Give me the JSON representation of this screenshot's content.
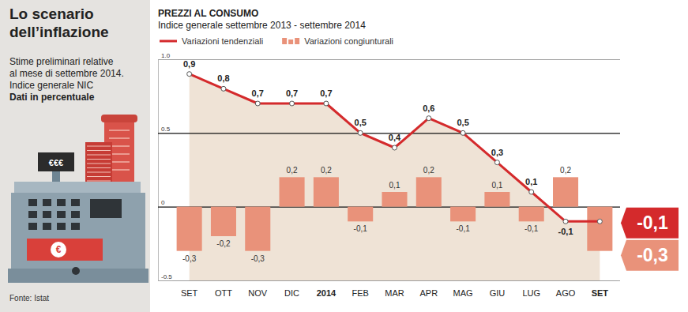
{
  "sidebar": {
    "heading": [
      "Lo scenario",
      "dell’inflazione"
    ],
    "notes": [
      "Stime preliminari relative",
      "al mese di settembre 2014.",
      "Indice generale NIC"
    ],
    "notes_bold": "Dati in percentuale",
    "source": "Fonte: Istat",
    "register_display": "€€€",
    "banknote": "€"
  },
  "chart_data": {
    "type": "line",
    "title": "PREZZI AL CONSUMO",
    "subtitle": "Indice generale settembre 2013 - settembre 2014",
    "categories": [
      "SET",
      "OTT",
      "NOV",
      "DIC",
      "2014",
      "FEB",
      "MAR",
      "APR",
      "MAG",
      "GIU",
      "LUG",
      "AGO",
      "SET"
    ],
    "series": [
      {
        "name": "Variazioni tendenziali",
        "type": "line",
        "color": "#d42a2c",
        "marker": "circle",
        "values": [
          0.9,
          0.8,
          0.7,
          0.7,
          0.7,
          0.5,
          0.4,
          0.6,
          0.5,
          0.3,
          0.1,
          -0.1,
          -0.1
        ],
        "value_labels": [
          "0,9",
          "0,8",
          "0,7",
          "0,7",
          "0,7",
          "0,5",
          "0,4",
          "0,6",
          "0,5",
          "0,3",
          "0,1",
          "-0,1",
          "-0,1"
        ]
      },
      {
        "name": "Variazioni congiunturali",
        "type": "bar",
        "color": "#e9927a",
        "values": [
          -0.3,
          -0.2,
          -0.3,
          0.2,
          0.2,
          -0.1,
          0.1,
          0.2,
          -0.1,
          0.1,
          -0.1,
          0.2,
          -0.3
        ],
        "value_labels": [
          "-0,3",
          "-0,2",
          "-0,3",
          "0,2",
          "0,2",
          "-0,1",
          "0,1",
          "0,2",
          "-0,1",
          "0,1",
          "-0,1",
          "0,2",
          "-0,3"
        ]
      }
    ],
    "ylim": [
      -0.5,
      1
    ],
    "yticks": [
      {
        "value": 1,
        "label": "1.0"
      },
      0.5,
      0,
      -0.5
    ],
    "grid": true,
    "data_labels": true,
    "legend": "top-left"
  }
}
